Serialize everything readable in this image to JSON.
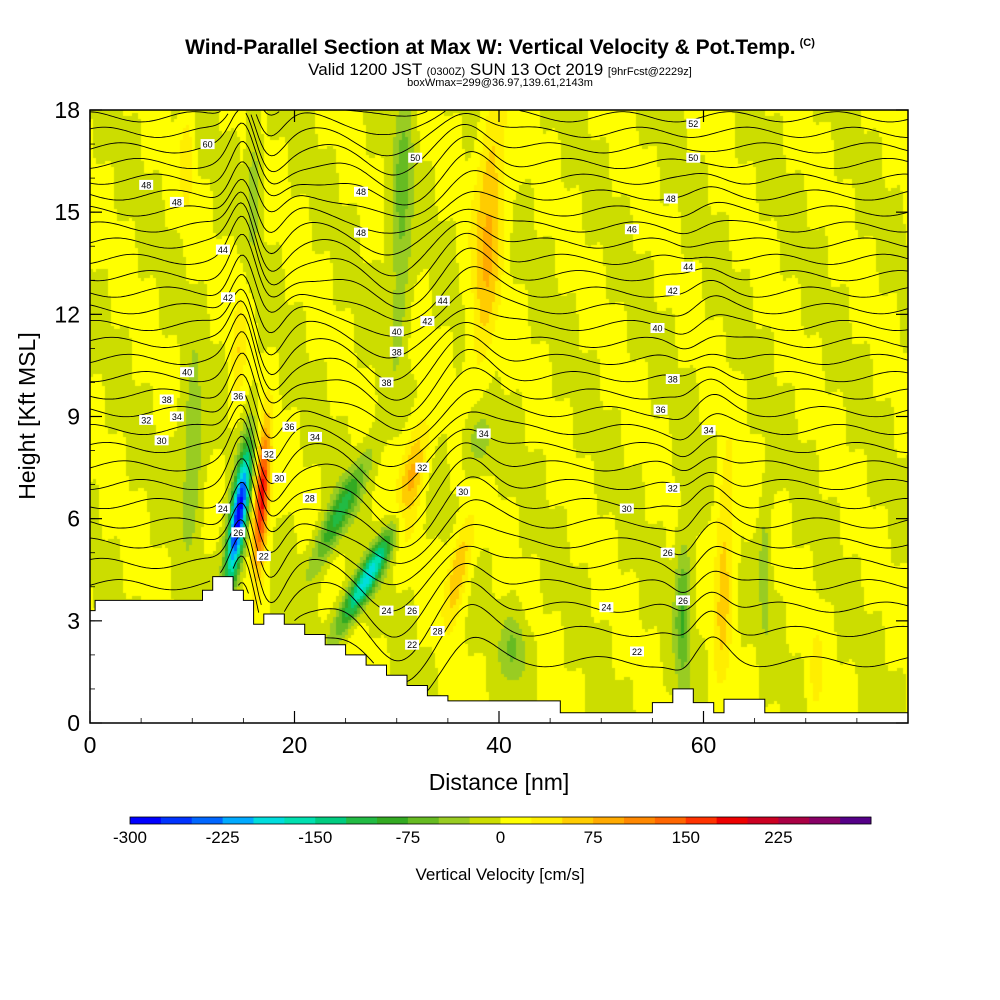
{
  "header": {
    "title": "Wind-Parallel Section at Max W: Vertical Velocity & Pot.Temp.",
    "copyright": "(C)",
    "valid_prefix": "Valid 1200 JST",
    "valid_utc": "(0300Z)",
    "valid_date": "SUN 13 Oct 2019",
    "forecast": "[9hrFcst@2229z]",
    "box_info": "boxWmax=299@36.97,139.61,2143m"
  },
  "chart_data": {
    "type": "heatmap",
    "title": "Wind-Parallel Section at Max W: Vertical Velocity & Pot.Temp.",
    "xlabel": "Distance [nm]",
    "ylabel": "Height [Kft MSL]",
    "xlim": [
      0,
      80
    ],
    "ylim": [
      0,
      18
    ],
    "x_ticks": [
      "0",
      "20",
      "40",
      "60"
    ],
    "x_tick_values": [
      0,
      20,
      40,
      60
    ],
    "y_ticks": [
      "0",
      "3",
      "6",
      "9",
      "12",
      "15",
      "18"
    ],
    "y_tick_values": [
      0,
      3,
      6,
      9,
      12,
      15,
      18
    ],
    "colorbar": {
      "label": "Vertical Velocity [cm/s]",
      "min": -300,
      "max": 275,
      "step": 25,
      "tick_labels": [
        "-300",
        "-225",
        "-150",
        "-75",
        "0",
        "75",
        "150",
        "225"
      ],
      "tick_values": [
        -300,
        -225,
        -150,
        -75,
        0,
        75,
        150,
        225
      ],
      "colors": [
        "#0000ff",
        "#0033ff",
        "#0066ff",
        "#00aaff",
        "#00dddd",
        "#00e0b0",
        "#00cc80",
        "#22bb44",
        "#33aa22",
        "#66bb22",
        "#99cc22",
        "#ccdd00",
        "#ffff00",
        "#ffee00",
        "#ffcc00",
        "#ffaa00",
        "#ff8800",
        "#ff6600",
        "#ff3300",
        "#ee0000",
        "#cc0022",
        "#aa0044",
        "#880066",
        "#550088"
      ]
    },
    "terrain_kft": [
      [
        0,
        3.3
      ],
      [
        0.5,
        3.6
      ],
      [
        11,
        3.6
      ],
      [
        11,
        3.9
      ],
      [
        12,
        3.9
      ],
      [
        12,
        4.3
      ],
      [
        14,
        4.3
      ],
      [
        14,
        3.9
      ],
      [
        15,
        3.9
      ],
      [
        15,
        3.6
      ],
      [
        16,
        3.6
      ],
      [
        16,
        2.9
      ],
      [
        17,
        2.9
      ],
      [
        17,
        3.2
      ],
      [
        19,
        3.2
      ],
      [
        19,
        2.9
      ],
      [
        21,
        2.9
      ],
      [
        21,
        2.6
      ],
      [
        23,
        2.6
      ],
      [
        23,
        2.3
      ],
      [
        25,
        2.3
      ],
      [
        25,
        2.0
      ],
      [
        27,
        2.0
      ],
      [
        27,
        1.7
      ],
      [
        29,
        1.7
      ],
      [
        29,
        1.4
      ],
      [
        31,
        1.4
      ],
      [
        31,
        1.1
      ],
      [
        33,
        1.1
      ],
      [
        33,
        0.8
      ],
      [
        35,
        0.8
      ],
      [
        35,
        0.65
      ],
      [
        46,
        0.65
      ],
      [
        46,
        0.3
      ],
      [
        55,
        0.3
      ],
      [
        55,
        0.6
      ],
      [
        57,
        0.6
      ],
      [
        57,
        1.0
      ],
      [
        59,
        1.0
      ],
      [
        59,
        0.6
      ],
      [
        61,
        0.6
      ],
      [
        61,
        0.3
      ],
      [
        62,
        0.3
      ],
      [
        62,
        0.7
      ],
      [
        66,
        0.7
      ],
      [
        66,
        0.3
      ],
      [
        80,
        0.3
      ]
    ],
    "w_features": [
      {
        "x": 14.5,
        "y": 6.0,
        "sx": 0.8,
        "sy": 2.0,
        "tilt": 0.45,
        "w": -300
      },
      {
        "x": 16.8,
        "y": 6.6,
        "sx": 0.7,
        "sy": 2.0,
        "tilt": 0.2,
        "w": 200
      },
      {
        "x": 27.0,
        "y": 4.2,
        "sx": 1.1,
        "sy": 1.4,
        "tilt": 1.7,
        "w": -190
      },
      {
        "x": 24.5,
        "y": 6.2,
        "sx": 1.2,
        "sy": 1.6,
        "tilt": 1.5,
        "w": -110
      },
      {
        "x": 31.5,
        "y": 7.3,
        "sx": 1.2,
        "sy": 1.6,
        "tilt": 0.5,
        "w": 85
      },
      {
        "x": 36.0,
        "y": 4.5,
        "sx": 1.0,
        "sy": 1.5,
        "tilt": 0.6,
        "w": 80
      },
      {
        "x": 39.0,
        "y": 14.5,
        "sx": 1.4,
        "sy": 4.0,
        "tilt": 0.2,
        "w": 80
      },
      {
        "x": 30.5,
        "y": 15.0,
        "sx": 1.0,
        "sy": 4.0,
        "tilt": 0.1,
        "w": -60
      },
      {
        "x": 10.0,
        "y": 8.0,
        "sx": 1.0,
        "sy": 2.5,
        "tilt": 0.1,
        "w": -55
      },
      {
        "x": 9.5,
        "y": 16.5,
        "sx": 0.7,
        "sy": 1.6,
        "tilt": 0.0,
        "w": 40
      },
      {
        "x": 16.0,
        "y": 16.0,
        "sx": 0.7,
        "sy": 2.0,
        "tilt": 0.0,
        "w": -40
      },
      {
        "x": 14.5,
        "y": 11.0,
        "sx": 0.7,
        "sy": 2.0,
        "tilt": 0.1,
        "w": 40
      },
      {
        "x": 38.0,
        "y": 8.3,
        "sx": 1.5,
        "sy": 1.0,
        "tilt": 0.0,
        "w": -45
      },
      {
        "x": 41.5,
        "y": 2.2,
        "sx": 1.3,
        "sy": 1.0,
        "tilt": 0.0,
        "w": -55
      },
      {
        "x": 58.0,
        "y": 3.2,
        "sx": 0.8,
        "sy": 2.3,
        "tilt": 0.0,
        "w": -75
      },
      {
        "x": 62.0,
        "y": 4.5,
        "sx": 0.9,
        "sy": 3.2,
        "tilt": 0.1,
        "w": 65
      },
      {
        "x": 66.0,
        "y": 4.5,
        "sx": 0.6,
        "sy": 2.2,
        "tilt": 0.0,
        "w": -40
      },
      {
        "x": 71.0,
        "y": 1.5,
        "sx": 0.8,
        "sy": 1.5,
        "tilt": 0.0,
        "w": 30
      }
    ],
    "theta_contours": {
      "levels_c": [
        22,
        24,
        26,
        28,
        30,
        32,
        34,
        36,
        38,
        40,
        42,
        44,
        46,
        48,
        50,
        52
      ],
      "labels": [
        {
          "text": "60",
          "x": 11.5,
          "y": 17.0
        },
        {
          "text": "50",
          "x": 31.8,
          "y": 16.6
        },
        {
          "text": "52",
          "x": 59.0,
          "y": 17.6
        },
        {
          "text": "50",
          "x": 59.0,
          "y": 16.6
        },
        {
          "text": "48",
          "x": 5.5,
          "y": 15.8
        },
        {
          "text": "48",
          "x": 8.5,
          "y": 15.3
        },
        {
          "text": "48",
          "x": 26.5,
          "y": 15.6
        },
        {
          "text": "48",
          "x": 56.8,
          "y": 15.4
        },
        {
          "text": "48",
          "x": 26.5,
          "y": 14.4
        },
        {
          "text": "46",
          "x": 53.0,
          "y": 14.5
        },
        {
          "text": "44",
          "x": 13.0,
          "y": 13.9
        },
        {
          "text": "44",
          "x": 58.5,
          "y": 13.4
        },
        {
          "text": "42",
          "x": 57.0,
          "y": 12.7
        },
        {
          "text": "42",
          "x": 13.5,
          "y": 12.5
        },
        {
          "text": "44",
          "x": 34.5,
          "y": 12.4
        },
        {
          "text": "42",
          "x": 33.0,
          "y": 11.8
        },
        {
          "text": "40",
          "x": 30.0,
          "y": 11.5
        },
        {
          "text": "40",
          "x": 55.5,
          "y": 11.6
        },
        {
          "text": "38",
          "x": 30.0,
          "y": 10.9
        },
        {
          "text": "40",
          "x": 9.5,
          "y": 10.3
        },
        {
          "text": "38",
          "x": 29.0,
          "y": 10.0
        },
        {
          "text": "38",
          "x": 57.0,
          "y": 10.1
        },
        {
          "text": "38",
          "x": 7.5,
          "y": 9.5
        },
        {
          "text": "36",
          "x": 14.5,
          "y": 9.6
        },
        {
          "text": "34",
          "x": 8.5,
          "y": 9.0
        },
        {
          "text": "32",
          "x": 5.5,
          "y": 8.9
        },
        {
          "text": "36",
          "x": 55.8,
          "y": 9.2
        },
        {
          "text": "36",
          "x": 19.5,
          "y": 8.7
        },
        {
          "text": "34",
          "x": 22.0,
          "y": 8.4
        },
        {
          "text": "34",
          "x": 38.5,
          "y": 8.5
        },
        {
          "text": "34",
          "x": 60.5,
          "y": 8.6
        },
        {
          "text": "30",
          "x": 7.0,
          "y": 8.3
        },
        {
          "text": "32",
          "x": 17.5,
          "y": 7.9
        },
        {
          "text": "32",
          "x": 32.5,
          "y": 7.5
        },
        {
          "text": "30",
          "x": 18.5,
          "y": 7.2
        },
        {
          "text": "32",
          "x": 57.0,
          "y": 6.9
        },
        {
          "text": "30",
          "x": 36.5,
          "y": 6.8
        },
        {
          "text": "28",
          "x": 21.5,
          "y": 6.6
        },
        {
          "text": "24",
          "x": 13.0,
          "y": 6.3
        },
        {
          "text": "30",
          "x": 52.5,
          "y": 6.3
        },
        {
          "text": "26",
          "x": 14.5,
          "y": 5.6
        },
        {
          "text": "26",
          "x": 56.5,
          "y": 5.0
        },
        {
          "text": "22",
          "x": 17.0,
          "y": 4.9
        },
        {
          "text": "26",
          "x": 58.0,
          "y": 3.6
        },
        {
          "text": "24",
          "x": 50.5,
          "y": 3.4
        },
        {
          "text": "24",
          "x": 29.0,
          "y": 3.3
        },
        {
          "text": "26",
          "x": 31.5,
          "y": 3.3
        },
        {
          "text": "28",
          "x": 34.0,
          "y": 2.7
        },
        {
          "text": "22",
          "x": 31.5,
          "y": 2.3
        },
        {
          "text": "22",
          "x": 53.5,
          "y": 2.1
        }
      ]
    }
  }
}
